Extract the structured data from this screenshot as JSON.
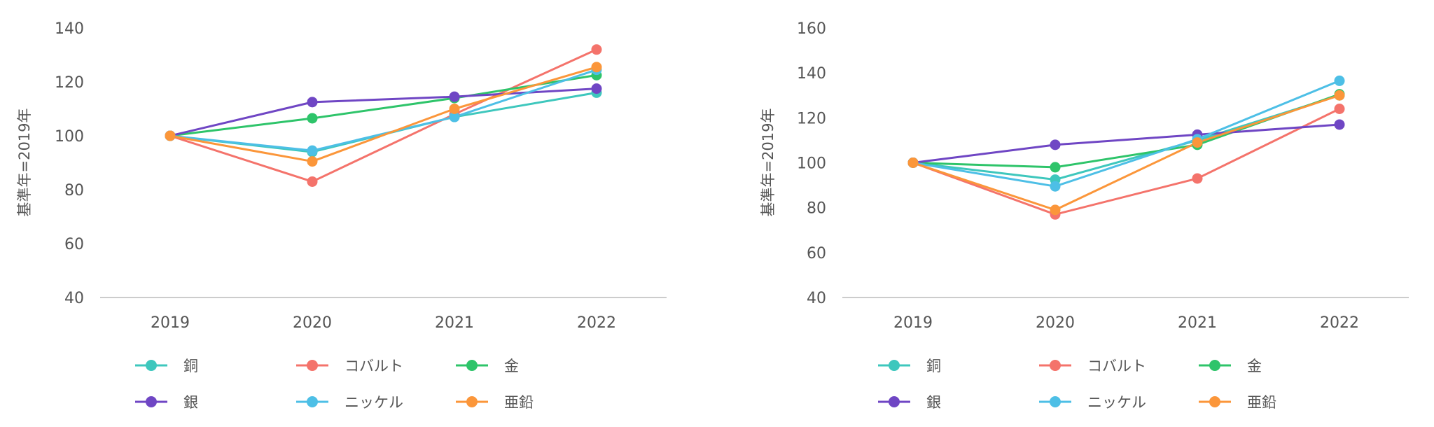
{
  "colors": {
    "銅": "#3ec7bd",
    "コバルト": "#f4736b",
    "金": "#2ec46a",
    "銀": "#6f46c4",
    "ニッケル": "#4dbfe6",
    "亜鉛": "#fb963a",
    "axis": "#cccccc"
  },
  "chart_data": [
    {
      "type": "line",
      "ylabel": "基準年=2019年",
      "xlabel": "",
      "categories": [
        "2019",
        "2020",
        "2021",
        "2022"
      ],
      "ylim": [
        40,
        140
      ],
      "yticks": [
        40,
        60,
        80,
        100,
        120,
        140
      ],
      "grid": false,
      "legend_position": "bottom",
      "series": [
        {
          "name": "銅",
          "values": [
            100,
            94,
            107,
            116
          ]
        },
        {
          "name": "コバルト",
          "values": [
            100,
            83,
            108,
            132
          ]
        },
        {
          "name": "金",
          "values": [
            100,
            106.5,
            114,
            122.5
          ]
        },
        {
          "name": "銀",
          "values": [
            100,
            112.5,
            114.5,
            117.5
          ]
        },
        {
          "name": "ニッケル",
          "values": [
            100,
            94.5,
            107,
            124.5
          ]
        },
        {
          "name": "亜鉛",
          "values": [
            100,
            90.5,
            110,
            125.5
          ]
        }
      ]
    },
    {
      "type": "line",
      "ylabel": "基準年=2019年",
      "xlabel": "",
      "categories": [
        "2019",
        "2020",
        "2021",
        "2022"
      ],
      "ylim": [
        40,
        160
      ],
      "yticks": [
        40,
        60,
        80,
        100,
        120,
        140,
        160
      ],
      "grid": false,
      "legend_position": "bottom",
      "series": [
        {
          "name": "銅",
          "values": [
            100,
            92.5,
            110,
            130
          ]
        },
        {
          "name": "コバルト",
          "values": [
            100,
            77,
            93,
            124
          ]
        },
        {
          "name": "金",
          "values": [
            100,
            98,
            108,
            130.5
          ]
        },
        {
          "name": "銀",
          "values": [
            100,
            108,
            112.5,
            117
          ]
        },
        {
          "name": "ニッケル",
          "values": [
            100,
            89.5,
            110.5,
            136.5
          ]
        },
        {
          "name": "亜鉛",
          "values": [
            100,
            79,
            109,
            130
          ]
        }
      ]
    }
  ]
}
